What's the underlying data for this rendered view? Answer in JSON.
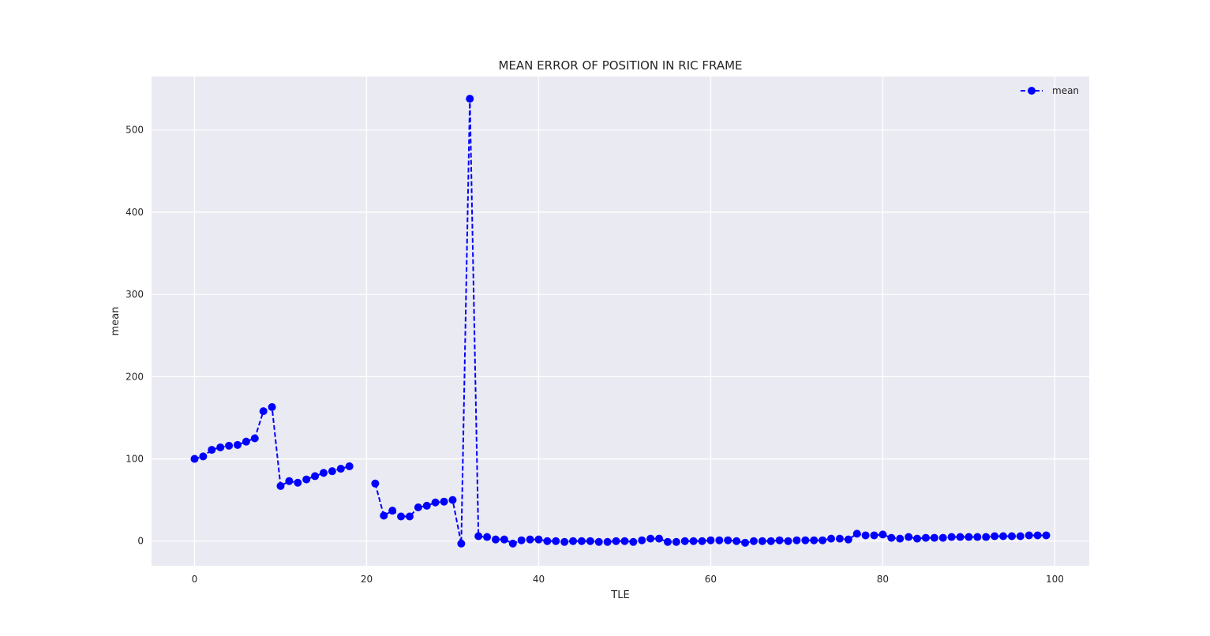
{
  "chart_data": {
    "type": "line",
    "title": "MEAN ERROR OF POSITION IN RIC FRAME",
    "xlabel": "TLE",
    "ylabel": "mean",
    "xlim": [
      -5,
      104
    ],
    "ylim": [
      -30,
      565
    ],
    "xticks": [
      0,
      20,
      40,
      60,
      80,
      100
    ],
    "yticks": [
      0,
      100,
      200,
      300,
      400,
      500
    ],
    "grid": true,
    "legend": {
      "position": "top-right"
    },
    "colors": {
      "plot_background": "#EAEAF2",
      "grid": "#FFFFFF",
      "series": "#0000FF"
    },
    "series": [
      {
        "name": "mean",
        "linestyle": "dashed",
        "marker": "circle",
        "x": [
          0,
          1,
          2,
          3,
          4,
          5,
          6,
          7,
          8,
          9,
          10,
          11,
          12,
          13,
          14,
          15,
          16,
          17,
          18,
          19,
          20,
          21,
          22,
          23,
          24,
          25,
          26,
          27,
          28,
          29,
          30,
          31,
          32,
          33,
          34,
          35,
          36,
          37,
          38,
          39,
          40,
          41,
          42,
          43,
          44,
          45,
          46,
          47,
          48,
          49,
          50,
          51,
          52,
          53,
          54,
          55,
          56,
          57,
          58,
          59,
          60,
          61,
          62,
          63,
          64,
          65,
          66,
          67,
          68,
          69,
          70,
          71,
          72,
          73,
          74,
          75,
          76,
          77,
          78,
          79,
          80,
          81,
          82,
          83,
          84,
          85,
          86,
          87,
          88,
          89,
          90,
          91,
          92,
          93,
          94,
          95,
          96,
          97,
          98,
          99
        ],
        "y": [
          100,
          103,
          111,
          114,
          116,
          117,
          121,
          125,
          158,
          163,
          67,
          73,
          71,
          75,
          79,
          83,
          85,
          88,
          91,
          null,
          null,
          70,
          31,
          37,
          30,
          30,
          41,
          43,
          47,
          48,
          50,
          -3,
          538,
          6,
          5,
          2,
          2,
          -3,
          1,
          2,
          2,
          0,
          0,
          -1,
          0,
          0,
          0,
          -1,
          -1,
          0,
          0,
          -1,
          1,
          3,
          3,
          -1,
          -1,
          0,
          0,
          0,
          1,
          1,
          1,
          0,
          -2,
          0,
          0,
          0,
          1,
          0,
          1,
          1,
          1,
          1,
          3,
          3,
          2,
          9,
          7,
          7,
          8,
          4,
          3,
          5,
          3,
          4,
          4,
          4,
          5,
          5,
          5,
          5,
          5,
          6,
          6,
          6,
          6,
          7,
          7,
          7
        ]
      }
    ]
  }
}
